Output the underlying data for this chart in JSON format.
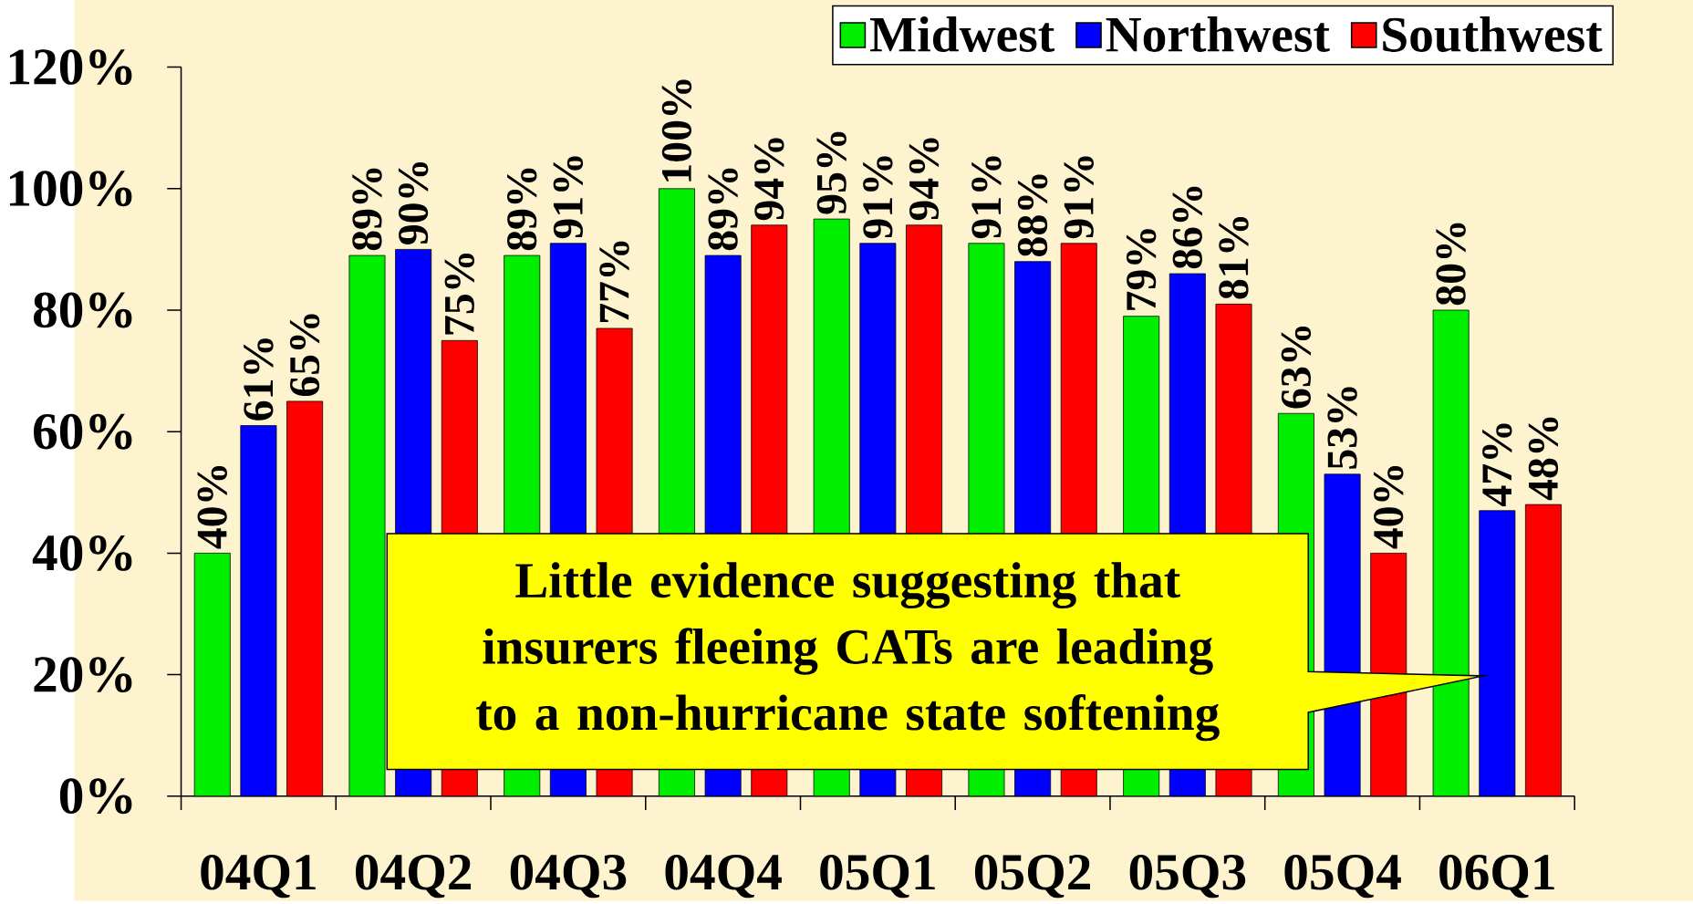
{
  "chart_data": {
    "type": "bar",
    "categories": [
      "04Q1",
      "04Q2",
      "04Q3",
      "04Q4",
      "05Q1",
      "05Q2",
      "05Q3",
      "05Q4",
      "06Q1"
    ],
    "series": [
      {
        "name": "Midwest",
        "color": "#00ee00",
        "values": [
          40,
          89,
          89,
          100,
          95,
          91,
          79,
          63,
          80
        ],
        "value_labels": [
          "40%",
          "89%",
          "89%",
          "100%",
          "95%",
          "91%",
          "79%",
          "63%",
          "80%"
        ]
      },
      {
        "name": "Northwest",
        "color": "#0000ff",
        "values": [
          61,
          90,
          91,
          89,
          91,
          88,
          86,
          53,
          47
        ],
        "value_labels": [
          "61%",
          "90%",
          "91%",
          "89%",
          "91%",
          "88%",
          "86%",
          "53%",
          "47%"
        ]
      },
      {
        "name": "Southwest",
        "color": "#ff0000",
        "values": [
          65,
          75,
          77,
          94,
          94,
          91,
          81,
          40,
          48
        ],
        "value_labels": [
          "65%",
          "75%",
          "77%",
          "94%",
          "94%",
          "91%",
          "81%",
          "40%",
          "48%"
        ]
      }
    ],
    "ylim": [
      0,
      120
    ],
    "yticks": [
      {
        "value": 0,
        "label": "0%"
      },
      {
        "value": 20,
        "label": "20%"
      },
      {
        "value": 40,
        "label": "40%"
      },
      {
        "value": 60,
        "label": "60%"
      },
      {
        "value": 80,
        "label": "80%"
      },
      {
        "value": 100,
        "label": "100%"
      },
      {
        "value": 120,
        "label": "120%"
      }
    ],
    "grid": false,
    "legend": "top right",
    "annotations": [
      "Little evidence suggesting that insurers fleeing CATs are leading to a non-hurricane state softening"
    ]
  }
}
